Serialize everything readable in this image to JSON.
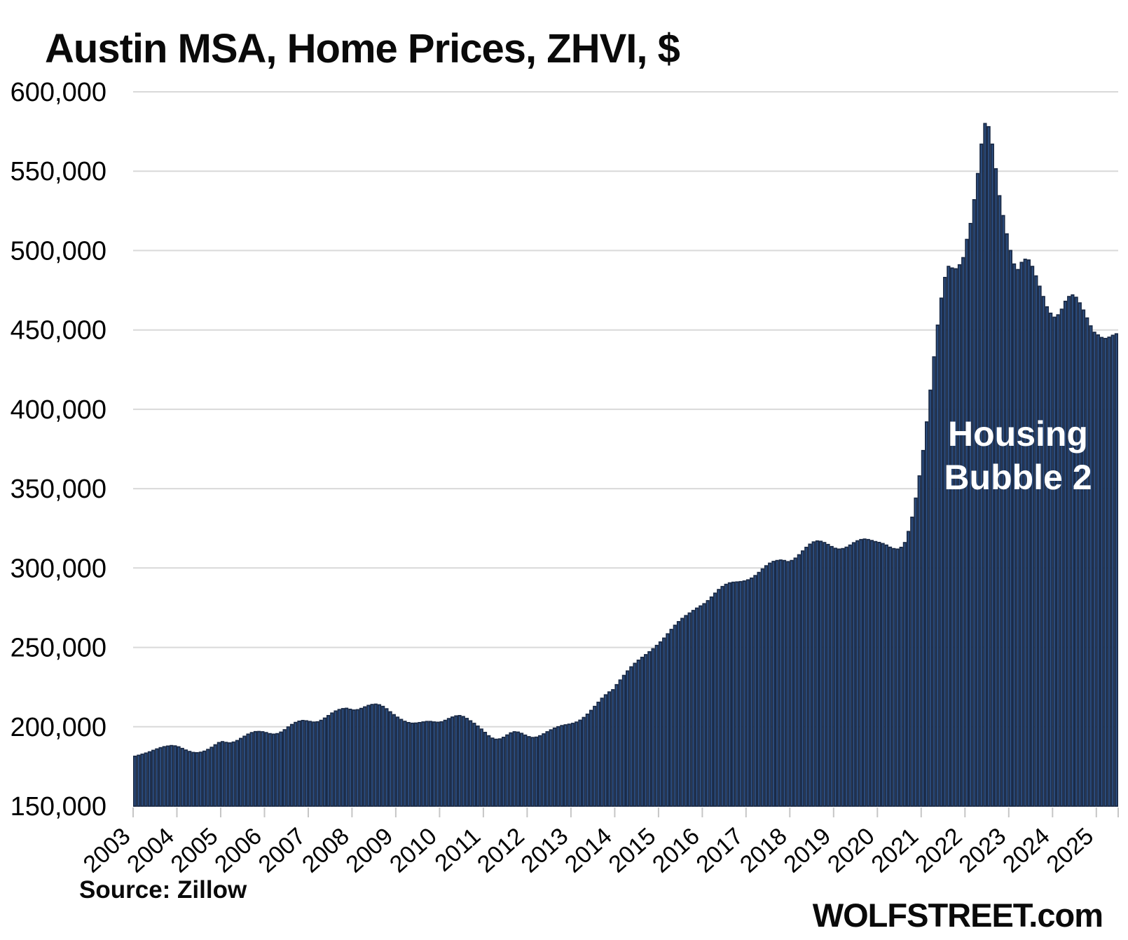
{
  "title": "Austin MSA, Home Prices, ZHVI, $",
  "annotation": {
    "line1": "Housing",
    "line2": "Bubble 2"
  },
  "source_label": "Source: Zillow",
  "brand_label": "WOLFSTREET.com",
  "colors": {
    "bar_fill": "#2F5388",
    "bar_stroke": "#1B2B47",
    "gridline": "#D9D9D9",
    "tick": "#C6C6C6",
    "text": "#000000",
    "annotation_text": "#FFFFFF",
    "background": "#FFFFFF"
  },
  "chart_data": {
    "type": "bar",
    "title": "Austin MSA, Home Prices, ZHVI, $",
    "xlabel": "",
    "ylabel": "",
    "unit": "USD",
    "frequency": "monthly",
    "x_start": "2003-01",
    "x_end": "2025-06",
    "ylim": [
      150000,
      600000
    ],
    "y_tick_step": 50000,
    "y_ticks": [
      150000,
      200000,
      250000,
      300000,
      350000,
      400000,
      450000,
      500000,
      550000,
      600000
    ],
    "y_tick_labels": [
      "150,000",
      "200,000",
      "250,000",
      "300,000",
      "350,000",
      "400,000",
      "450,000",
      "500,000",
      "550,000",
      "600,000"
    ],
    "year_labels": [
      "2003",
      "2004",
      "2005",
      "2006",
      "2007",
      "2008",
      "2009",
      "2010",
      "2011",
      "2012",
      "2013",
      "2014",
      "2015",
      "2016",
      "2017",
      "2018",
      "2019",
      "2020",
      "2021",
      "2022",
      "2023",
      "2024",
      "2025"
    ],
    "grid": true,
    "legend": "none",
    "annotations": [
      "Housing Bubble 2"
    ],
    "series": [
      {
        "name": "Austin MSA ZHVI",
        "monthly_values_usd": [
          181400,
          182000,
          182700,
          183400,
          184200,
          185100,
          186000,
          186800,
          187400,
          187800,
          188100,
          187900,
          187300,
          186300,
          185300,
          184400,
          183800,
          183600,
          183900,
          184600,
          185700,
          187000,
          188600,
          190000,
          190600,
          190100,
          189800,
          190300,
          191300,
          192600,
          194000,
          195300,
          196300,
          196900,
          197000,
          196800,
          196300,
          195600,
          195300,
          195600,
          196600,
          198100,
          199800,
          201400,
          202700,
          203500,
          203900,
          203700,
          203300,
          202900,
          203100,
          204000,
          205400,
          207000,
          208600,
          209900,
          210800,
          211400,
          211600,
          211000,
          210500,
          210700,
          211500,
          212500,
          213400,
          214000,
          214200,
          213800,
          212800,
          211300,
          209400,
          207600,
          206000,
          204600,
          203400,
          202600,
          202200,
          202300,
          202600,
          203000,
          203300,
          203300,
          203000,
          202800,
          203100,
          204000,
          205100,
          206100,
          206800,
          207000,
          206400,
          205200,
          203700,
          202100,
          200400,
          198500,
          196400,
          194300,
          192800,
          192100,
          192300,
          193300,
          194800,
          196100,
          196800,
          196600,
          195800,
          194700,
          193700,
          193200,
          193400,
          194300,
          195500,
          196800,
          198000,
          199100,
          200000,
          200700,
          201200,
          201600,
          202100,
          202900,
          204100,
          205800,
          207900,
          210300,
          212800,
          215400,
          217900,
          220100,
          221900,
          223300,
          226500,
          229400,
          232300,
          235100,
          237700,
          239900,
          241900,
          243700,
          245400,
          247200,
          249100,
          251200,
          253400,
          255800,
          258500,
          261300,
          263900,
          266200,
          268200,
          270000,
          271600,
          273200,
          274700,
          276100,
          277500,
          279400,
          281700,
          284100,
          286400,
          288300,
          289700,
          290600,
          291000,
          291200,
          291400,
          291800,
          292500,
          293600,
          295200,
          297200,
          299400,
          301400,
          303000,
          304100,
          304700,
          305000,
          304700,
          304000,
          304700,
          306200,
          308300,
          310700,
          313000,
          315000,
          316400,
          317000,
          316800,
          316000,
          314800,
          313500,
          312400,
          311900,
          312200,
          313100,
          314400,
          315900,
          317100,
          317900,
          318200,
          317900,
          317300,
          316600,
          316100,
          315400,
          314400,
          313100,
          312200,
          311900,
          313000,
          316000,
          323000,
          332000,
          344000,
          358000,
          374000,
          392000,
          412000,
          433000,
          453000,
          470000,
          483000,
          490000,
          489000,
          488500,
          491000,
          495500,
          507000,
          517000,
          532000,
          548500,
          567000,
          580000,
          578000,
          567000,
          551500,
          534500,
          522000,
          510500,
          500000,
          491500,
          488000,
          492500,
          494500,
          494000,
          490000,
          484000,
          477500,
          471000,
          464500,
          460500,
          458000,
          459500,
          463000,
          468000,
          471000,
          472000,
          470500,
          467000,
          462500,
          457500,
          452500,
          448500,
          446800,
          445200,
          444600,
          445400,
          446600,
          447500
        ]
      }
    ]
  }
}
